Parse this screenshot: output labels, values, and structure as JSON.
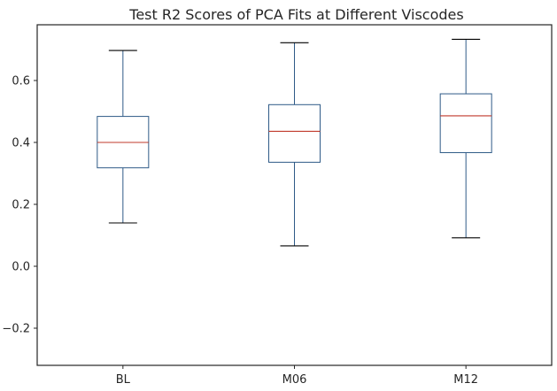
{
  "chart_data": {
    "type": "box",
    "title": "Test R2 Scores of PCA Fits at Different Viscodes",
    "xlabel": "",
    "ylabel": "",
    "categories": [
      "BL",
      "M06",
      "M12"
    ],
    "boxes": [
      {
        "label": "BL",
        "whislo": 0.14,
        "q1": 0.318,
        "med": 0.4,
        "q3": 0.484,
        "whishi": 0.697
      },
      {
        "label": "M06",
        "whislo": 0.066,
        "q1": 0.336,
        "med": 0.436,
        "q3": 0.522,
        "whishi": 0.722
      },
      {
        "label": "M12",
        "whislo": 0.092,
        "q1": 0.367,
        "med": 0.486,
        "q3": 0.557,
        "whishi": 0.733
      }
    ],
    "ylim": [
      -0.32,
      0.78
    ],
    "yticks": [
      -0.2,
      0.0,
      0.2,
      0.4,
      0.6
    ],
    "ytick_labels": [
      "−0.2",
      "0.0",
      "0.2",
      "0.4",
      "0.6"
    ],
    "grid": false,
    "colors": {
      "box": "#2e5a87",
      "median": "#c0392b",
      "whisker_cap": "#000000",
      "axes": "#262626"
    }
  }
}
